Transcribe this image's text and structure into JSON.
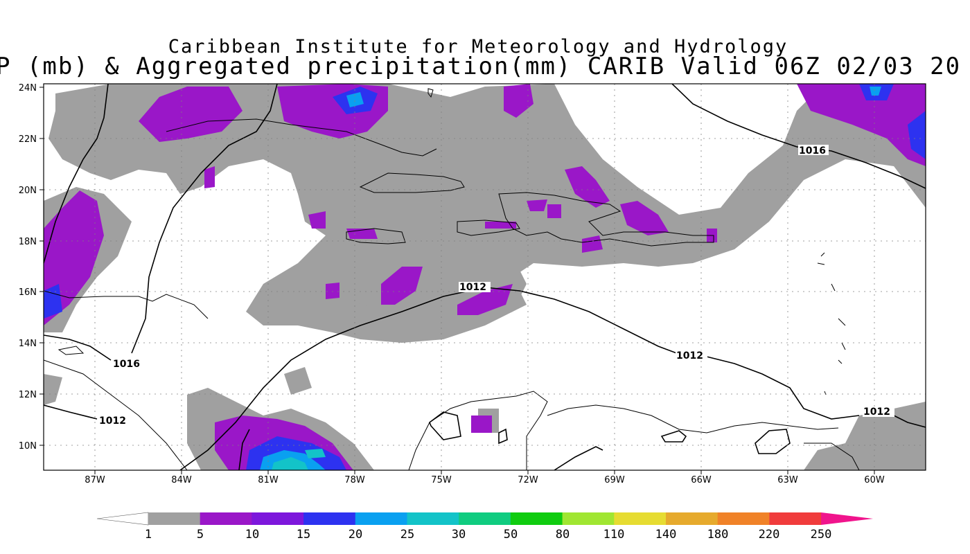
{
  "header": {
    "title": "Caribbean Institute for Meteorology and Hydrology",
    "subtitle": "P (mb) & Aggregated precipitation(mm) CARIB Valid 06Z 02/03 20"
  },
  "axes": {
    "lat_labels": [
      "24N",
      "22N",
      "20N",
      "18N",
      "16N",
      "14N",
      "12N",
      "10N"
    ],
    "lon_labels": [
      "87W",
      "84W",
      "81W",
      "78W",
      "75W",
      "72W",
      "69W",
      "66W",
      "63W",
      "60W"
    ]
  },
  "isobars": [
    {
      "value": "1016",
      "label": "1016"
    },
    {
      "value": "1012",
      "label": "1012"
    }
  ],
  "colorbar": {
    "labels": [
      "1",
      "5",
      "10",
      "15",
      "20",
      "25",
      "30",
      "50",
      "80",
      "110",
      "140",
      "180",
      "220",
      "250"
    ],
    "colors": [
      "#ffffff",
      "#a0a0a0",
      "#9a17c8",
      "#7d17dc",
      "#2d32f0",
      "#0aa0f0",
      "#13c3c8",
      "#10cc80",
      "#10cc10",
      "#a0e632",
      "#e6dc32",
      "#e6aa2d",
      "#f08228",
      "#f03c3c",
      "#f0148c"
    ]
  }
}
